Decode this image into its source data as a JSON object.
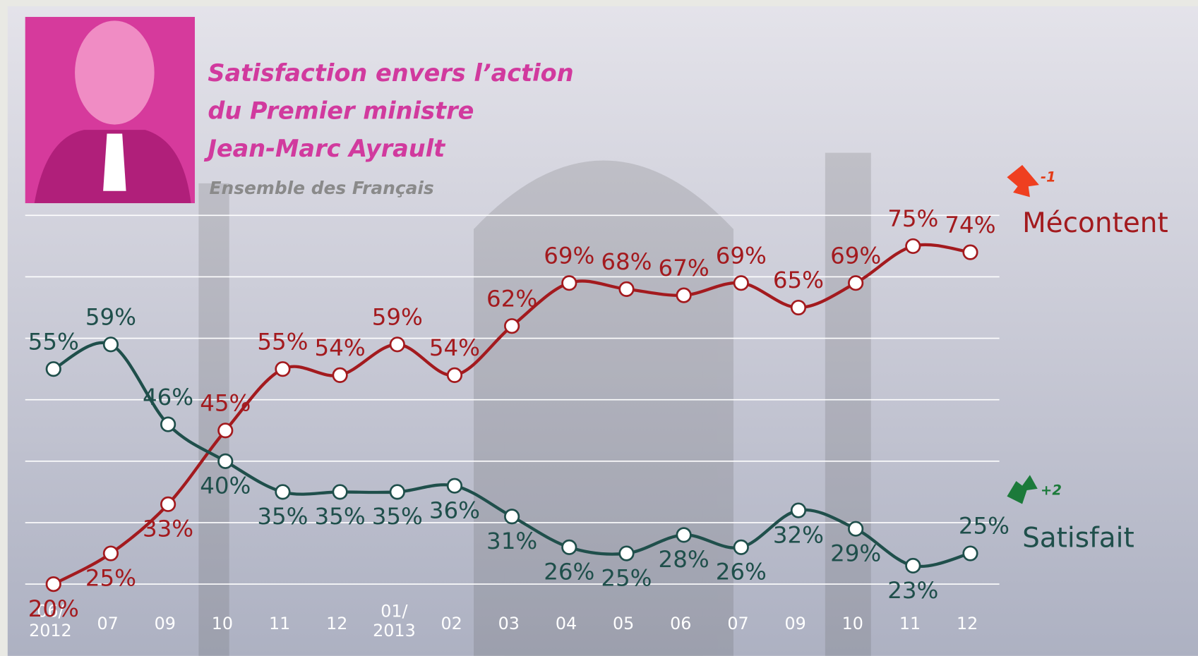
{
  "chart_data": {
    "type": "line",
    "title": "Satisfaction envers l’action\ndu Premier ministre\nJean-Marc Ayrault",
    "subtitle": "Ensemble des Français",
    "categories": [
      "06/\n2012",
      "07",
      "09",
      "10",
      "11",
      "12",
      "01/\n2013",
      "02",
      "03",
      "04",
      "05",
      "06",
      "07",
      "09",
      "10",
      "11",
      "12"
    ],
    "ylim": [
      20,
      80
    ],
    "yticks": [
      20,
      30,
      40,
      50,
      60,
      70,
      80
    ],
    "grid": true,
    "series": [
      {
        "name": "Mécontent",
        "color": "#a31a1e",
        "change": "-1",
        "values": [
          20,
          25,
          33,
          45,
          55,
          54,
          59,
          54,
          62,
          69,
          68,
          67,
          69,
          65,
          69,
          75,
          74
        ],
        "value_labels": [
          "20%",
          "25%",
          "33%",
          "45%",
          "55%",
          "54%",
          "59%",
          "54%",
          "62%",
          "69%",
          "68%",
          "67%",
          "69%",
          "65%",
          "69%",
          "75%",
          "74%"
        ]
      },
      {
        "name": "Satisfait",
        "color": "#1f4f4b",
        "change": "+2",
        "values": [
          55,
          59,
          46,
          40,
          35,
          35,
          35,
          36,
          31,
          26,
          25,
          28,
          26,
          32,
          29,
          23,
          25
        ],
        "value_labels": [
          "55%",
          "59%",
          "46%",
          "40%",
          "35%",
          "35%",
          "35%",
          "36%",
          "31%",
          "26%",
          "25%",
          "28%",
          "26%",
          "32%",
          "29%",
          "23%",
          "25%"
        ]
      }
    ]
  }
}
